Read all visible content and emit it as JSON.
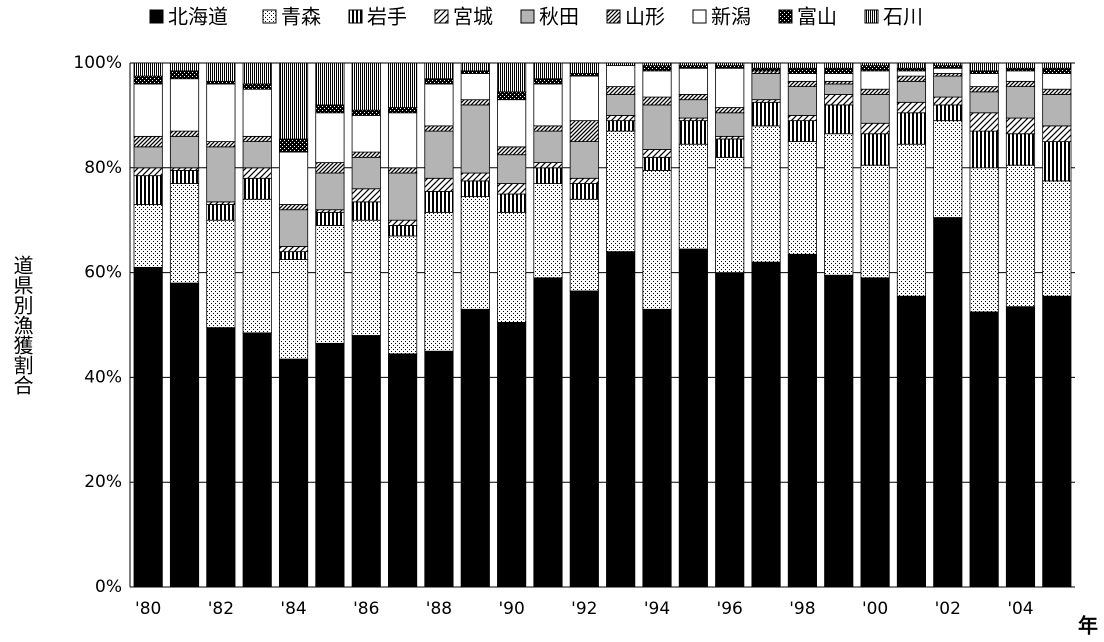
{
  "chart_data": {
    "type": "stacked_bar",
    "categories": [
      "'80",
      null,
      "'82",
      null,
      "'84",
      null,
      "'86",
      null,
      "'88",
      null,
      "'90",
      null,
      "'92",
      null,
      "'94",
      null,
      "'96",
      null,
      "'98",
      null,
      "'00",
      null,
      "'02",
      null,
      "'04",
      null
    ],
    "x_label": "年",
    "y_label": "道県別漁獲割合",
    "ylim": [
      0,
      100
    ],
    "yticks": [
      {
        "value": 0,
        "label": "0%"
      },
      {
        "value": 20,
        "label": "20%"
      },
      {
        "value": 40,
        "label": "40%"
      },
      {
        "value": 60,
        "label": "60%"
      },
      {
        "value": 80,
        "label": "80%"
      },
      {
        "value": 100,
        "label": "100%"
      }
    ],
    "grid": true,
    "legend": "top",
    "series": [
      {
        "name": "北海道",
        "color": "#000000",
        "pattern": "solid",
        "values": [
          61,
          58,
          49.5,
          48.5,
          43.5,
          46.5,
          48,
          44.5,
          45,
          53,
          50.5,
          59,
          56.5,
          64,
          53,
          64.5,
          60,
          62,
          63.5,
          59.5,
          59,
          55.5,
          70.5,
          52.5,
          53.5,
          55.5
        ]
      },
      {
        "name": "青森",
        "color": "#ffffff",
        "pattern": "dots",
        "values": [
          12,
          19,
          20.5,
          25.5,
          19,
          22.5,
          22,
          22.5,
          26.5,
          21.5,
          21,
          18,
          17.5,
          23,
          26.5,
          20,
          22,
          26,
          21.5,
          27,
          21.5,
          29,
          18.5,
          27.5,
          27,
          22
        ]
      },
      {
        "name": "岩手",
        "color": "#ffffff",
        "pattern": "vstripes",
        "values": [
          5.5,
          2.5,
          3,
          4,
          1.5,
          2.5,
          3.5,
          2,
          4,
          3,
          3.5,
          3,
          3,
          2,
          2.5,
          4.5,
          3.5,
          4.5,
          4,
          5.5,
          6,
          6,
          3,
          7,
          6,
          7.5
        ]
      },
      {
        "name": "宮城",
        "color": "#ffffff",
        "pattern": "diag",
        "values": [
          1.5,
          0.5,
          0.5,
          2,
          1,
          0.5,
          2.5,
          1,
          2.5,
          1.5,
          2,
          1,
          1,
          1,
          1.5,
          0.5,
          0.5,
          0.5,
          1,
          2,
          2,
          2,
          1.5,
          3.5,
          3,
          3
        ]
      },
      {
        "name": "秋田",
        "color": "#b4b4b4",
        "pattern": "solid",
        "values": [
          4,
          6,
          10.5,
          5,
          7,
          7,
          6,
          9,
          9,
          13,
          5.5,
          6,
          7,
          4,
          8.5,
          3.5,
          4.5,
          5,
          5.5,
          2,
          5.5,
          4,
          4,
          4,
          6,
          6
        ]
      },
      {
        "name": "山形",
        "color": "#ffffff",
        "pattern": "crossdiag",
        "values": [
          2,
          1,
          1,
          1,
          1,
          2,
          1,
          1,
          1,
          1,
          1.5,
          1,
          4,
          1.5,
          1.5,
          1,
          1,
          0.5,
          1,
          0.5,
          1,
          1,
          0.5,
          1,
          1,
          1
        ]
      },
      {
        "name": "新潟",
        "color": "#ffffff",
        "pattern": "solid",
        "values": [
          10,
          10,
          11,
          9,
          10,
          9.5,
          7,
          10.5,
          8,
          5,
          9,
          8,
          8.5,
          4,
          5,
          5,
          7.5,
          0,
          1.5,
          1.5,
          3.5,
          1,
          1,
          2.5,
          2,
          3
        ]
      },
      {
        "name": "富山",
        "color": "#000000",
        "pattern": "checker",
        "values": [
          1.5,
          1.5,
          0.5,
          1,
          2.5,
          1.5,
          1,
          1,
          1,
          0.5,
          1.5,
          1,
          0.5,
          0,
          1,
          0.5,
          0.5,
          0.5,
          1,
          1,
          1,
          0.5,
          0.5,
          0.5,
          0.5,
          1
        ]
      },
      {
        "name": "石川",
        "color": "#ffffff",
        "pattern": "vstripes-dense",
        "values": [
          2.5,
          1.5,
          3.5,
          4,
          14.5,
          8,
          9,
          8.5,
          3,
          1.5,
          5.5,
          3,
          2,
          0.5,
          0.5,
          0.5,
          0.5,
          1,
          1,
          1,
          0.5,
          1,
          0.5,
          1.5,
          1,
          1
        ]
      }
    ]
  }
}
